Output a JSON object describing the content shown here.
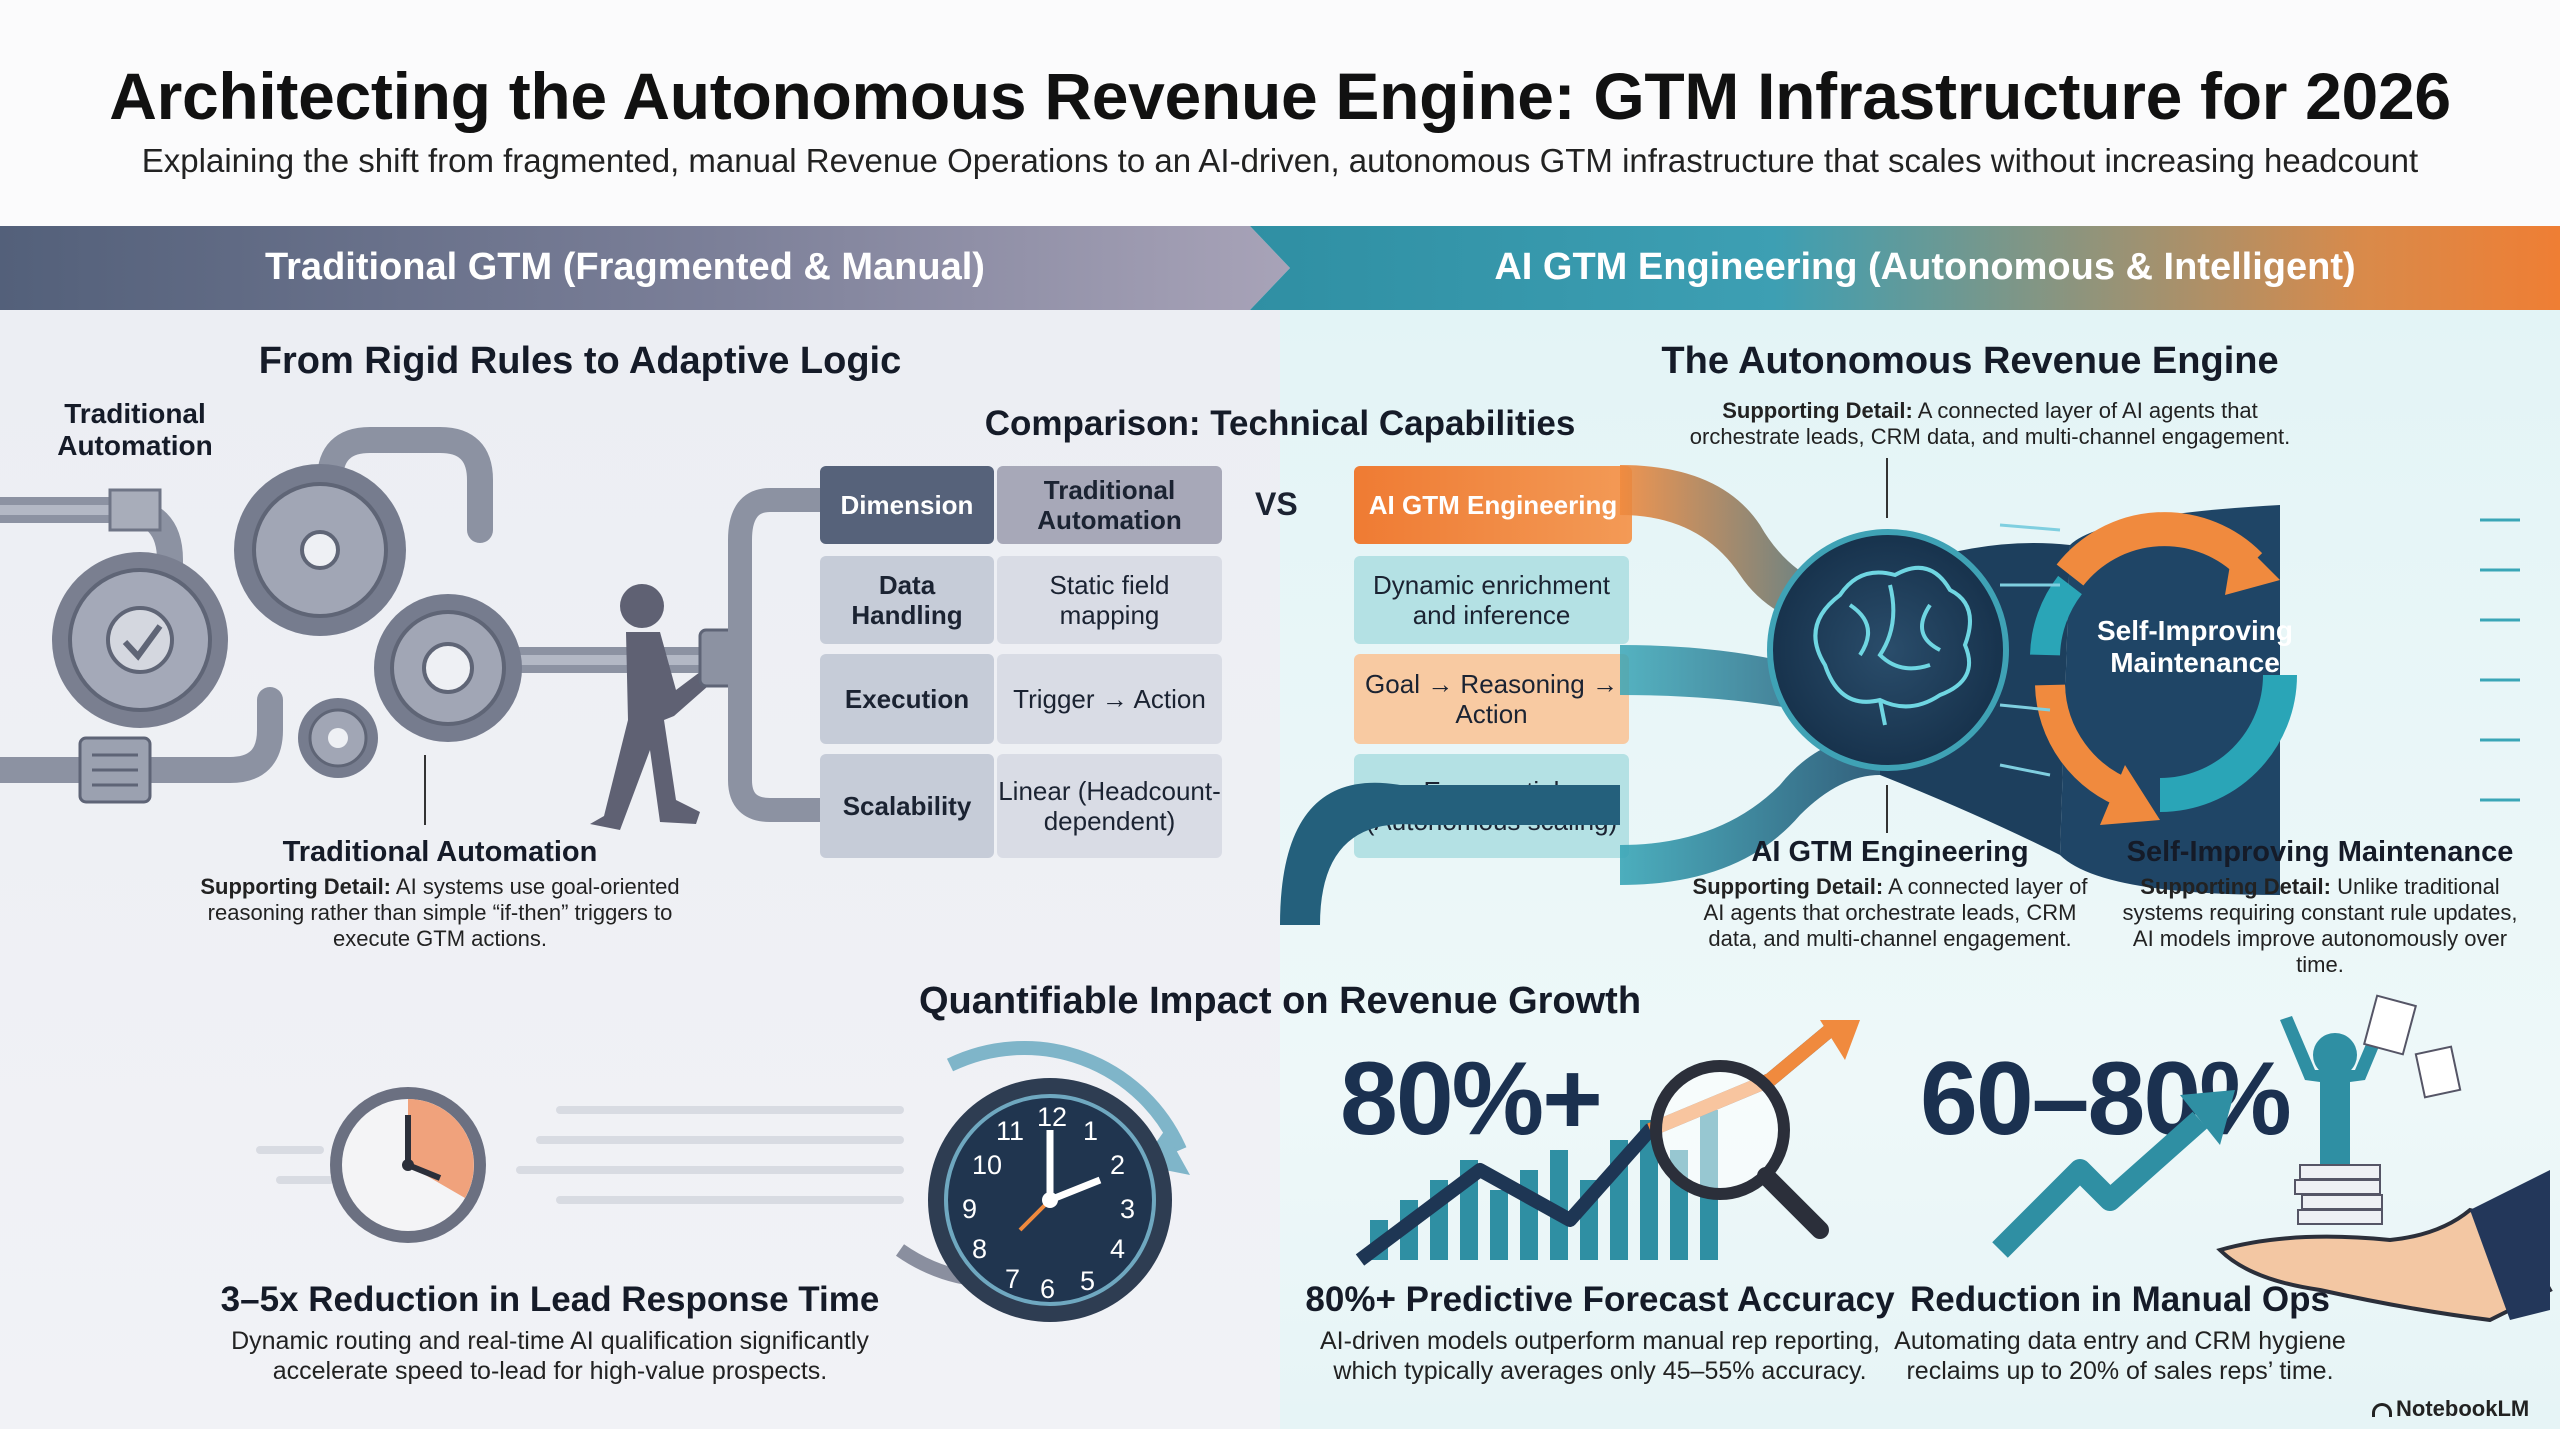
{
  "header": {
    "title": "Architecting the Autonomous Revenue Engine: GTM Infrastructure for 2026",
    "subtitle": "Explaining the shift from fragmented, manual Revenue Operations to an AI-driven, autonomous GTM infrastructure that scales without increasing headcount"
  },
  "bands": {
    "left": "Traditional GTM (Fragmented & Manual)",
    "right": "AI GTM Engineering (Autonomous & Intelligent)"
  },
  "left_section": {
    "heading": "From Rigid Rules to Adaptive Logic",
    "gear_label": "Traditional Automation",
    "caption_title": "Traditional Automation",
    "caption_detail_label": "Supporting Detail:",
    "caption_detail": "AI systems use goal-oriented reasoning rather than simple “if-then” triggers to execute GTM actions."
  },
  "comparison": {
    "heading": "Comparison: Technical Capabilities",
    "vs": "VS",
    "col_dimension": "Dimension",
    "col_traditional": "Traditional Automation",
    "col_ai": "AI GTM Engineering",
    "rows": [
      {
        "dimension": "Data Handling",
        "traditional": "Static field mapping",
        "ai": "Dynamic enrichment and inference"
      },
      {
        "dimension": "Execution",
        "traditional": "Trigger → Action",
        "ai": "Goal → Reasoning → Action"
      },
      {
        "dimension": "Scalability",
        "traditional": "Linear (Headcount-dependent)",
        "ai": "Exponential (Autonomous scaling)"
      }
    ]
  },
  "right_section": {
    "heading": "The Autonomous Revenue Engine",
    "detail_label": "Supporting Detail:",
    "detail": "A connected layer of AI agents that orchestrate leads, CRM data, and multi-channel engagement.",
    "cycle_label": "Self-Improving Maintenance",
    "engine_title": "AI GTM Engineering",
    "engine_detail_label": "Supporting Detail:",
    "engine_detail": "A connected layer of AI agents that orchestrate leads, CRM data, and multi-channel engagement.",
    "maint_title": "Self-Improving Maintenance",
    "maint_detail_label": "Supporting Detail:",
    "maint_detail": "Unlike traditional systems requiring constant rule updates, AI models improve autonomously over time."
  },
  "impact": {
    "heading": "Quantifiable Impact on Revenue Growth",
    "items": [
      {
        "stat": "",
        "title": "3–5x Reduction in Lead Response Time",
        "detail": "Dynamic routing and real-time AI qualification significantly accelerate speed to-lead for high-value prospects."
      },
      {
        "stat": "80%+",
        "title": "80%+ Predictive Forecast Accuracy",
        "detail": "AI-driven models outperform manual rep reporting, which typically averages only 45–55% accuracy."
      },
      {
        "stat": "60–80%",
        "title": "Reduction in Manual Ops",
        "detail": "Automating data entry and CRM hygiene reclaims up to 20% of sales reps’ time."
      }
    ],
    "clock_numbers": [
      "12",
      "1",
      "2",
      "3",
      "4",
      "5",
      "6",
      "7",
      "8",
      "9",
      "10",
      "11"
    ]
  },
  "brand": "NotebookLM",
  "colors": {
    "accent_orange": "#ef7b33",
    "teal": "#2f8fa3",
    "navy": "#1b3150",
    "slate": "#56627a"
  }
}
